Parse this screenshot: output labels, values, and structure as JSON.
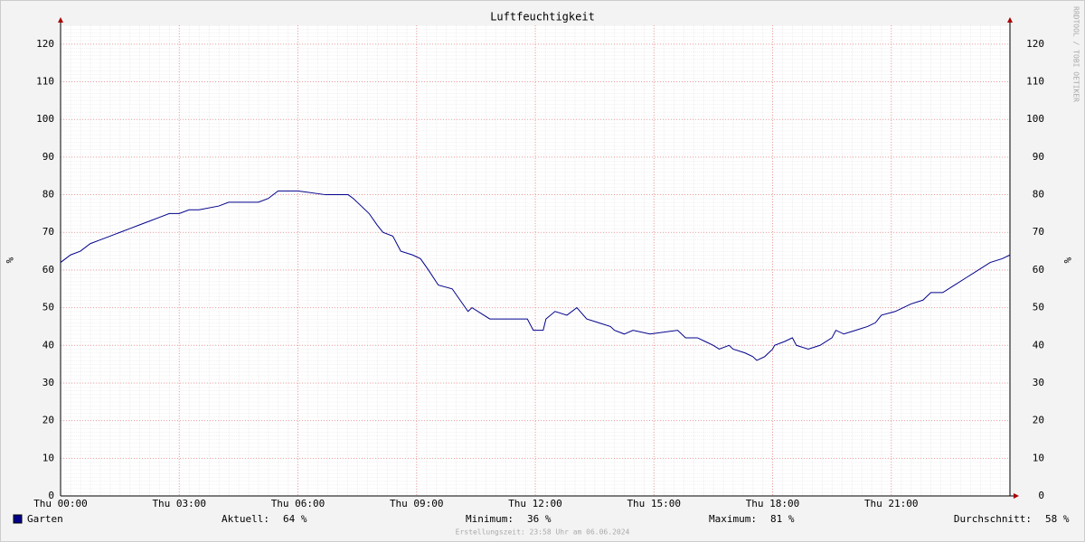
{
  "chart_data": {
    "type": "line",
    "title": "Luftfeuchtigkeit",
    "ylabel": "%",
    "watermark": "RRDTOOL / TOBI OETIKER",
    "footer": "Erstellungszeit: 23:58 Uhr am 06.06.2024",
    "xlim": [
      0,
      24
    ],
    "xticks": [
      {
        "value": 0,
        "label": "Thu 00:00"
      },
      {
        "value": 3,
        "label": "Thu 03:00"
      },
      {
        "value": 6,
        "label": "Thu 06:00"
      },
      {
        "value": 9,
        "label": "Thu 09:00"
      },
      {
        "value": 12,
        "label": "Thu 12:00"
      },
      {
        "value": 15,
        "label": "Thu 15:00"
      },
      {
        "value": 18,
        "label": "Thu 18:00"
      },
      {
        "value": 21,
        "label": "Thu 21:00"
      }
    ],
    "ylim": [
      0,
      125
    ],
    "yticks": [
      0,
      10,
      20,
      30,
      40,
      50,
      60,
      70,
      80,
      90,
      100,
      110,
      120
    ],
    "grid": true,
    "x": [
      0,
      0.25,
      0.5,
      0.75,
      1,
      1.25,
      1.5,
      1.75,
      2,
      2.25,
      2.5,
      2.75,
      3,
      3.25,
      3.5,
      4,
      4.25,
      4.5,
      5,
      5.25,
      5.5,
      5.75,
      6,
      6.7,
      7.27,
      7.4,
      7.6,
      7.8,
      8.0,
      8.15,
      8.4,
      8.6,
      8.9,
      9.1,
      9.3,
      9.55,
      9.9,
      10.1,
      10.3,
      10.4,
      10.85,
      11.2,
      11.6,
      11.8,
      11.95,
      12.2,
      12.27,
      12.5,
      12.8,
      13.05,
      13.3,
      13.6,
      13.9,
      14.0,
      14.25,
      14.47,
      14.9,
      15.6,
      15.8,
      16.1,
      16.3,
      16.5,
      16.65,
      16.9,
      17.0,
      17.3,
      17.5,
      17.6,
      17.8,
      18.0,
      18.05,
      18.3,
      18.5,
      18.6,
      18.9,
      19.2,
      19.5,
      19.6,
      19.8,
      20.1,
      20.4,
      20.6,
      20.75,
      21.1,
      21.5,
      21.8,
      22.0,
      22.3,
      22.6,
      22.9,
      23.2,
      23.5,
      23.8,
      24
    ],
    "series": [
      {
        "name": "Garten",
        "color": "#00008b",
        "values": [
          62,
          64,
          65,
          67,
          68,
          69,
          70,
          71,
          72,
          73,
          74,
          75,
          75,
          76,
          76,
          77,
          78,
          78,
          78,
          79,
          81,
          81,
          81,
          80,
          80,
          79,
          77,
          75,
          72,
          70,
          69,
          65,
          64,
          63,
          60,
          56,
          55,
          52,
          49,
          50,
          47,
          47,
          47,
          47,
          44,
          44,
          47,
          49,
          48,
          50,
          47,
          46,
          45,
          44,
          43,
          44,
          43,
          44,
          42,
          42,
          41,
          40,
          39,
          40,
          39,
          38,
          37,
          36,
          37,
          39,
          40,
          41,
          42,
          40,
          39,
          40,
          42,
          44,
          43,
          44,
          45,
          46,
          48,
          49,
          51,
          52,
          54,
          54,
          56,
          58,
          60,
          62,
          63,
          64
        ]
      }
    ],
    "stats": [
      {
        "label": "Aktuell:",
        "value": 64,
        "value_label": "64 %"
      },
      {
        "label": "Minimum:",
        "value": 36,
        "value_label": "36 %"
      },
      {
        "label": "Maximum:",
        "value": 81,
        "value_label": "81 %"
      },
      {
        "label": "Durchschnitt:",
        "value": 58,
        "value_label": "58 %"
      }
    ]
  }
}
